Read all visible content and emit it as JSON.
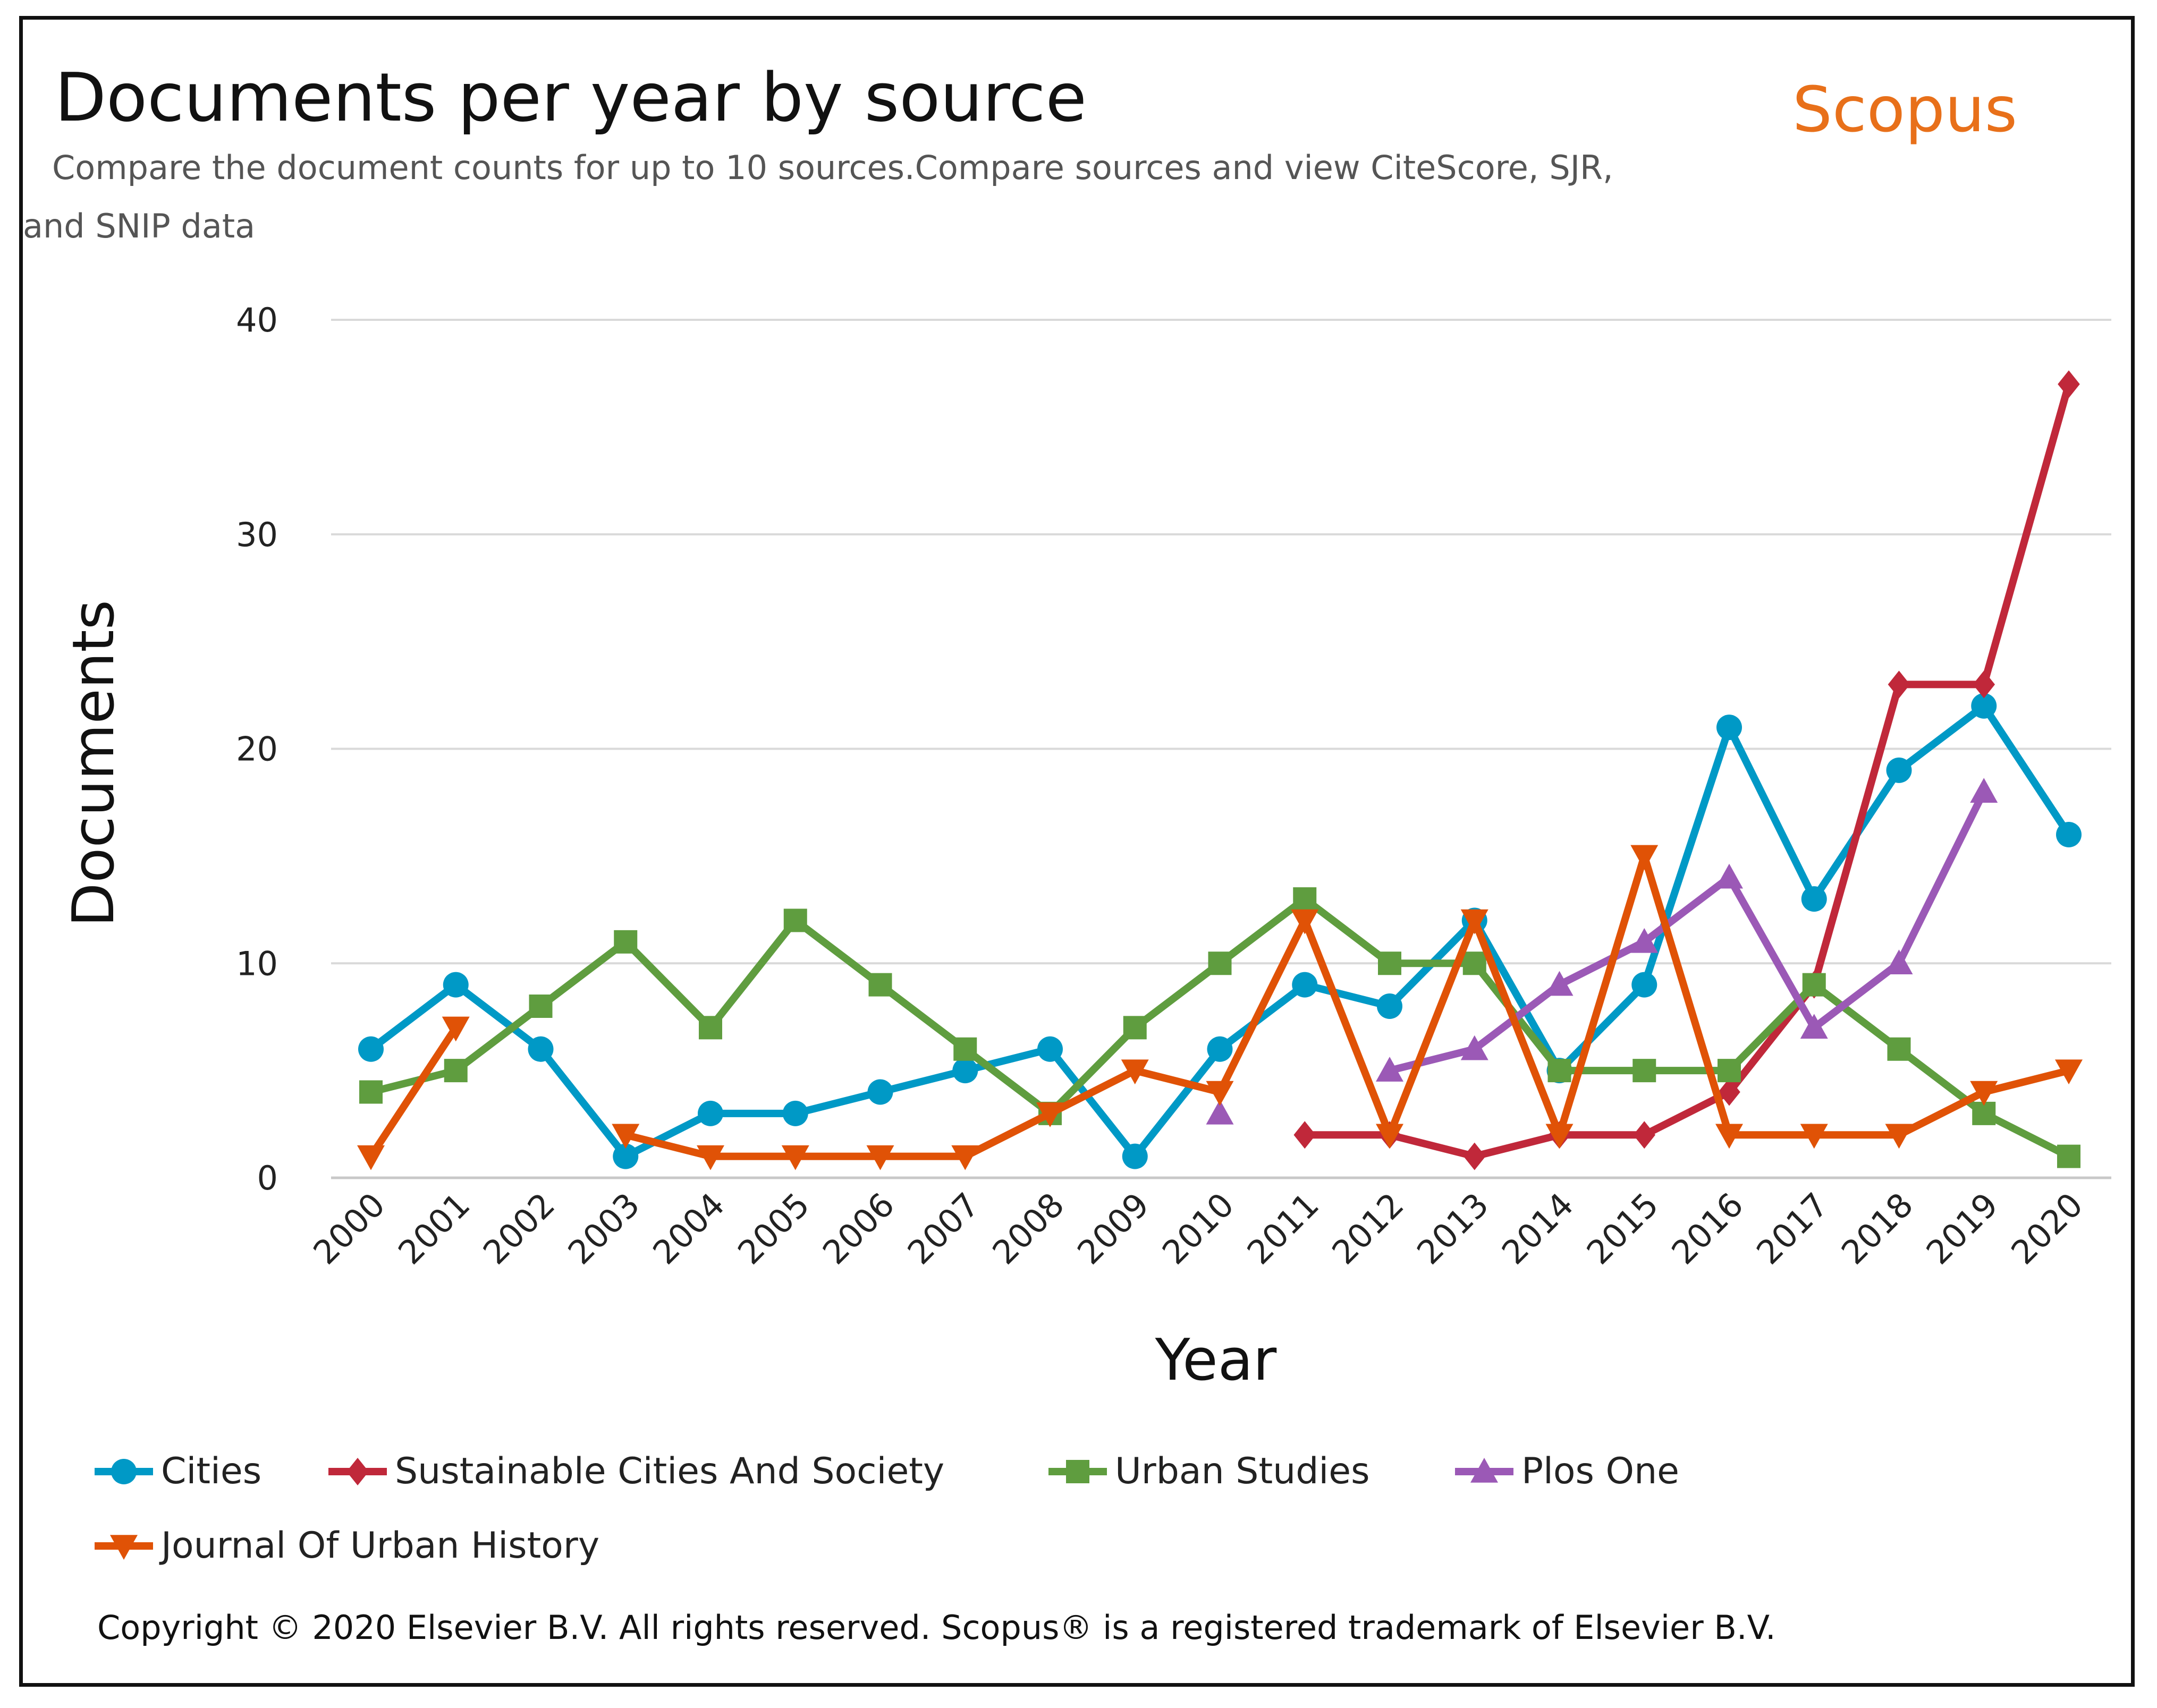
{
  "chart_data": {
    "type": "line",
    "title": "Documents per year by source",
    "subtitle_line1": "Compare the document counts for up to 10 sources.Compare sources and view CiteScore, SJR,",
    "subtitle_line2": "and SNIP data",
    "brand": "Scopus",
    "xlabel": "Year",
    "ylabel": "Documents",
    "ylim": [
      0,
      40
    ],
    "yticks": [
      0,
      10,
      20,
      30,
      40
    ],
    "x": [
      "2000",
      "2001",
      "2002",
      "2003",
      "2004",
      "2005",
      "2006",
      "2007",
      "2008",
      "2009",
      "2010",
      "2011",
      "2012",
      "2013",
      "2014",
      "2015",
      "2016",
      "2017",
      "2018",
      "2019",
      "2020"
    ],
    "series": [
      {
        "name": "Cities",
        "color": "#0099c6",
        "marker": "circle",
        "values": [
          6,
          9,
          6,
          1,
          3,
          3,
          4,
          5,
          6,
          1,
          6,
          9,
          8,
          12,
          5,
          9,
          21,
          13,
          19,
          22,
          16
        ]
      },
      {
        "name": "Sustainable Cities And Society",
        "color": "#c0283a",
        "marker": "diamond",
        "values": [
          null,
          null,
          null,
          null,
          null,
          null,
          null,
          null,
          null,
          null,
          null,
          2,
          2,
          1,
          2,
          2,
          4,
          9,
          23,
          23,
          37
        ]
      },
      {
        "name": "Urban Studies",
        "color": "#5f9d3f",
        "marker": "square",
        "values": [
          4,
          5,
          8,
          11,
          7,
          12,
          9,
          6,
          3,
          7,
          10,
          13,
          10,
          10,
          5,
          5,
          5,
          9,
          6,
          3,
          1
        ]
      },
      {
        "name": "Plos One",
        "color": "#9b59b6",
        "marker": "triangle-up",
        "values": [
          null,
          null,
          null,
          null,
          null,
          null,
          null,
          null,
          null,
          null,
          3,
          null,
          5,
          6,
          9,
          11,
          14,
          7,
          10,
          18,
          null
        ]
      },
      {
        "name": "Journal Of Urban History",
        "color": "#e05206",
        "marker": "triangle-down",
        "values": [
          1,
          7,
          null,
          2,
          1,
          1,
          1,
          1,
          3,
          5,
          4,
          12,
          2,
          12,
          2,
          15,
          2,
          2,
          2,
          4,
          5
        ]
      }
    ],
    "legend_position": "bottom",
    "copyright": "Copyright © 2020 Elsevier B.V. All rights reserved. Scopus® is a registered trademark of Elsevier B.V."
  },
  "colors": {
    "brand": "#e8701a",
    "grid": "#d9d9d9"
  }
}
